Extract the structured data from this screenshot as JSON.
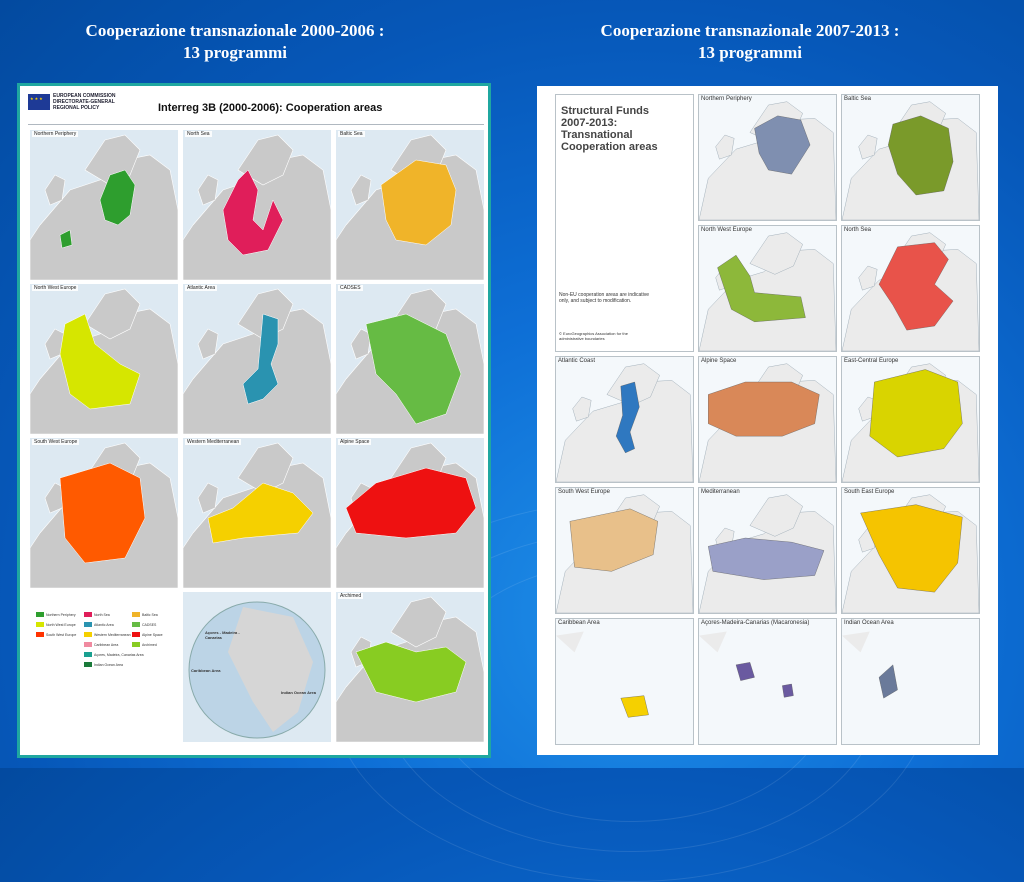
{
  "slide": {
    "left_title": {
      "line1": "Cooperazione transnazionale 2000-2006 :",
      "line2": "13 programmi"
    },
    "right_title": {
      "line1": "Cooperazione transnazionale 2007-2013 :",
      "line2": "13 programmi"
    }
  },
  "left_poster": {
    "org": {
      "line1": "EUROPEAN COMMISSION",
      "line2": "DIRECTORATE-GENERAL",
      "line3": "REGIONAL POLICY"
    },
    "title": "Interreg 3B (2000-2006): Cooperation areas",
    "panels": [
      {
        "label": "Northern Periphery",
        "color": "#2e9e2e"
      },
      {
        "label": "North Sea",
        "color": "#e01e5a"
      },
      {
        "label": "Baltic Sea",
        "color": "#f0b429"
      },
      {
        "label": "North West Europe",
        "color": "#d6e600"
      },
      {
        "label": "Atlantic Area",
        "color": "#2a93b0"
      },
      {
        "label": "CADSES",
        "color": "#66bb44"
      },
      {
        "label": "South West Europe",
        "color": "#ff5a00"
      },
      {
        "label": "Western Mediterranean",
        "color": "#f5d000"
      },
      {
        "label": "Alpine Space",
        "color": "#ee1111"
      },
      {
        "label": "",
        "color": "#ffffff"
      },
      {
        "label": "",
        "color": "#ffffff"
      },
      {
        "label": "Archimed",
        "color": "#88cc22"
      }
    ],
    "legend": [
      {
        "label": "Northern Periphery",
        "color": "#2e9e2e"
      },
      {
        "label": "North West Europe",
        "color": "#d6e600"
      },
      {
        "label": "South West Europe",
        "color": "#ff3300"
      },
      {
        "label": "North Sea",
        "color": "#e01e5a"
      },
      {
        "label": "Atlantic Area",
        "color": "#2a93b0"
      },
      {
        "label": "Western Mediterranean",
        "color": "#f5d000"
      },
      {
        "label": "Caribbean Area",
        "color": "#f08aa0"
      },
      {
        "label": "Açores, Madeira, Canarias Area",
        "color": "#1aa090"
      },
      {
        "label": "Indian Ocean Area",
        "color": "#1a7a3a"
      },
      {
        "label": "Baltic Sea",
        "color": "#f0b429"
      },
      {
        "label": "CADSES",
        "color": "#66bb44"
      },
      {
        "label": "Alpine Space",
        "color": "#ee1111"
      },
      {
        "label": "Archimed",
        "color": "#88cc22"
      }
    ],
    "globe_labels": {
      "azores": "Açores - Madeira - Canarias",
      "caribbean": "Caribbean Area",
      "indian": "Indian Ocean Area"
    }
  },
  "right_poster": {
    "title": {
      "line1": "Structural Funds",
      "line2": "2007-2013:",
      "line3": "Transnational",
      "line4": "Cooperation areas"
    },
    "note": {
      "line1": "Non-EU cooperation areas are indicative",
      "line2": "only, and subject to modification."
    },
    "copyright": {
      "line1": "© EuroGeographics Association for the",
      "line2": "administrative boundaries"
    },
    "panels": [
      {
        "label": "Northern Periphery",
        "color": "#7f8fb0"
      },
      {
        "label": "Baltic Sea",
        "color": "#7a9a2a"
      },
      {
        "label": "North West Europe",
        "color": "#8db83a"
      },
      {
        "label": "North Sea",
        "color": "#e8534a"
      },
      {
        "label": "Atlantic Coast",
        "color": "#2f78c0"
      },
      {
        "label": "Alpine Space",
        "color": "#d98858"
      },
      {
        "label": "East-Central Europe",
        "color": "#d9d400"
      },
      {
        "label": "South West Europe",
        "color": "#e8c08a"
      },
      {
        "label": "Mediterranean",
        "color": "#9aa0c8"
      },
      {
        "label": "South East Europe",
        "color": "#f5c400"
      },
      {
        "label": "Caribbean Area",
        "color": "#f5d000"
      },
      {
        "label": "Açores-Madeira-Canarias (Macaronesia)",
        "color": "#6a5aa0"
      },
      {
        "label": "Indian Ocean Area",
        "color": "#6a7a9a"
      }
    ]
  }
}
